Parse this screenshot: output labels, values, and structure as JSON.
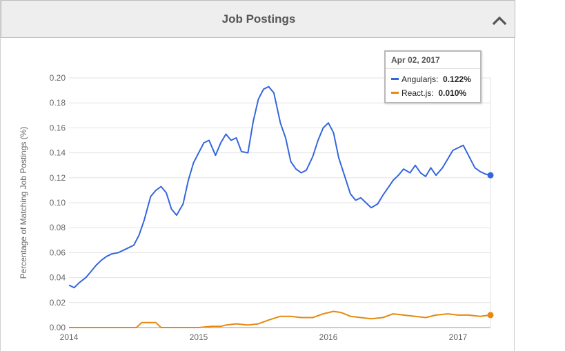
{
  "header": {
    "title": "Job Postings",
    "collapse_icon": "chevron-up-icon"
  },
  "tooltip": {
    "date": "Apr 02, 2017",
    "rows": [
      {
        "name": "Angularjs",
        "value": "0.122%",
        "color": "#3366dd"
      },
      {
        "name": "React.js",
        "value": "0.010%",
        "color": "#e6890d"
      }
    ]
  },
  "chart_data": {
    "type": "line",
    "title": "",
    "xlabel": "",
    "ylabel": "Percentage of Matching Job Postings (%)",
    "x_ticks": [
      "2014",
      "2015",
      "2016",
      "2017"
    ],
    "y_ticks": [
      "0.00",
      "0.02",
      "0.04",
      "0.06",
      "0.08",
      "0.10",
      "0.12",
      "0.14",
      "0.16",
      "0.18",
      "0.20"
    ],
    "xlim": [
      2014.0,
      2017.25
    ],
    "ylim": [
      0,
      0.2
    ],
    "grid": true,
    "series": [
      {
        "name": "Angularjs",
        "color": "#3366dd",
        "points": [
          [
            2014.0,
            0.034
          ],
          [
            2014.04,
            0.032
          ],
          [
            2014.08,
            0.036
          ],
          [
            2014.13,
            0.04
          ],
          [
            2014.17,
            0.045
          ],
          [
            2014.21,
            0.05
          ],
          [
            2014.25,
            0.054
          ],
          [
            2014.29,
            0.057
          ],
          [
            2014.33,
            0.059
          ],
          [
            2014.38,
            0.06
          ],
          [
            2014.42,
            0.062
          ],
          [
            2014.46,
            0.064
          ],
          [
            2014.5,
            0.066
          ],
          [
            2014.54,
            0.074
          ],
          [
            2014.58,
            0.086
          ],
          [
            2014.63,
            0.105
          ],
          [
            2014.67,
            0.11
          ],
          [
            2014.71,
            0.113
          ],
          [
            2014.75,
            0.108
          ],
          [
            2014.79,
            0.095
          ],
          [
            2014.83,
            0.09
          ],
          [
            2014.88,
            0.099
          ],
          [
            2014.92,
            0.118
          ],
          [
            2014.96,
            0.132
          ],
          [
            2015.0,
            0.14
          ],
          [
            2015.04,
            0.148
          ],
          [
            2015.08,
            0.15
          ],
          [
            2015.13,
            0.138
          ],
          [
            2015.17,
            0.148
          ],
          [
            2015.21,
            0.155
          ],
          [
            2015.25,
            0.15
          ],
          [
            2015.29,
            0.152
          ],
          [
            2015.33,
            0.141
          ],
          [
            2015.38,
            0.14
          ],
          [
            2015.42,
            0.165
          ],
          [
            2015.46,
            0.183
          ],
          [
            2015.5,
            0.191
          ],
          [
            2015.54,
            0.193
          ],
          [
            2015.58,
            0.188
          ],
          [
            2015.63,
            0.164
          ],
          [
            2015.67,
            0.152
          ],
          [
            2015.71,
            0.133
          ],
          [
            2015.75,
            0.127
          ],
          [
            2015.79,
            0.124
          ],
          [
            2015.83,
            0.126
          ],
          [
            2015.88,
            0.137
          ],
          [
            2015.92,
            0.15
          ],
          [
            2015.96,
            0.16
          ],
          [
            2016.0,
            0.164
          ],
          [
            2016.04,
            0.156
          ],
          [
            2016.08,
            0.136
          ],
          [
            2016.13,
            0.12
          ],
          [
            2016.17,
            0.107
          ],
          [
            2016.21,
            0.102
          ],
          [
            2016.25,
            0.104
          ],
          [
            2016.29,
            0.1
          ],
          [
            2016.33,
            0.096
          ],
          [
            2016.38,
            0.099
          ],
          [
            2016.42,
            0.106
          ],
          [
            2016.46,
            0.112
          ],
          [
            2016.5,
            0.118
          ],
          [
            2016.54,
            0.122
          ],
          [
            2016.58,
            0.127
          ],
          [
            2016.63,
            0.124
          ],
          [
            2016.67,
            0.13
          ],
          [
            2016.71,
            0.124
          ],
          [
            2016.75,
            0.121
          ],
          [
            2016.79,
            0.128
          ],
          [
            2016.83,
            0.122
          ],
          [
            2016.88,
            0.128
          ],
          [
            2016.92,
            0.135
          ],
          [
            2016.96,
            0.142
          ],
          [
            2017.0,
            0.144
          ],
          [
            2017.04,
            0.146
          ],
          [
            2017.08,
            0.138
          ],
          [
            2017.13,
            0.128
          ],
          [
            2017.17,
            0.125
          ],
          [
            2017.21,
            0.123
          ],
          [
            2017.25,
            0.122
          ]
        ]
      },
      {
        "name": "React.js",
        "color": "#e6890d",
        "points": [
          [
            2014.0,
            0.0
          ],
          [
            2014.4,
            0.0
          ],
          [
            2014.52,
            0.0
          ],
          [
            2014.56,
            0.004
          ],
          [
            2014.63,
            0.004
          ],
          [
            2014.67,
            0.004
          ],
          [
            2014.71,
            0.0
          ],
          [
            2014.9,
            0.0
          ],
          [
            2015.0,
            0.0
          ],
          [
            2015.1,
            0.001
          ],
          [
            2015.17,
            0.001
          ],
          [
            2015.21,
            0.002
          ],
          [
            2015.29,
            0.003
          ],
          [
            2015.38,
            0.002
          ],
          [
            2015.46,
            0.003
          ],
          [
            2015.54,
            0.006
          ],
          [
            2015.63,
            0.009
          ],
          [
            2015.71,
            0.009
          ],
          [
            2015.79,
            0.008
          ],
          [
            2015.88,
            0.008
          ],
          [
            2015.96,
            0.011
          ],
          [
            2016.04,
            0.013
          ],
          [
            2016.1,
            0.012
          ],
          [
            2016.17,
            0.009
          ],
          [
            2016.25,
            0.008
          ],
          [
            2016.33,
            0.007
          ],
          [
            2016.42,
            0.008
          ],
          [
            2016.5,
            0.011
          ],
          [
            2016.58,
            0.01
          ],
          [
            2016.67,
            0.009
          ],
          [
            2016.75,
            0.008
          ],
          [
            2016.83,
            0.01
          ],
          [
            2016.92,
            0.011
          ],
          [
            2017.0,
            0.01
          ],
          [
            2017.08,
            0.01
          ],
          [
            2017.17,
            0.009
          ],
          [
            2017.25,
            0.01
          ]
        ]
      }
    ]
  }
}
